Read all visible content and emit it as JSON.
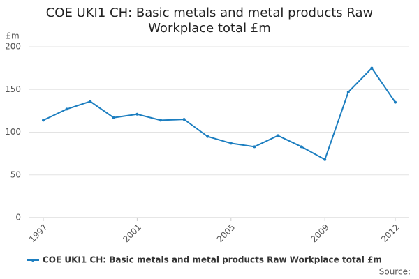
{
  "chart_data": {
    "type": "line",
    "title": "COE UKI1 CH: Basic metals and metal products Raw Workplace total £m",
    "y_label": "£m",
    "source_label": "Source:",
    "x": [
      1997,
      1998,
      1999,
      2000,
      2001,
      2002,
      2003,
      2004,
      2005,
      2006,
      2007,
      2008,
      2009,
      2010,
      2011,
      2012
    ],
    "series": [
      {
        "name": "COE UKI1 CH: Basic metals and metal products Raw Workplace total £m",
        "color": "#1c7ec0",
        "values": [
          114,
          127,
          136,
          117,
          121,
          114,
          115,
          95,
          87,
          83,
          96,
          83,
          68,
          147,
          175,
          135
        ]
      }
    ],
    "xlim": [
      1997,
      2012
    ],
    "xticks": [
      1997,
      2001,
      2005,
      2009,
      2012
    ],
    "ylim": [
      0,
      200
    ],
    "yticks": [
      0,
      50,
      100,
      150,
      200
    ],
    "grid": true
  }
}
